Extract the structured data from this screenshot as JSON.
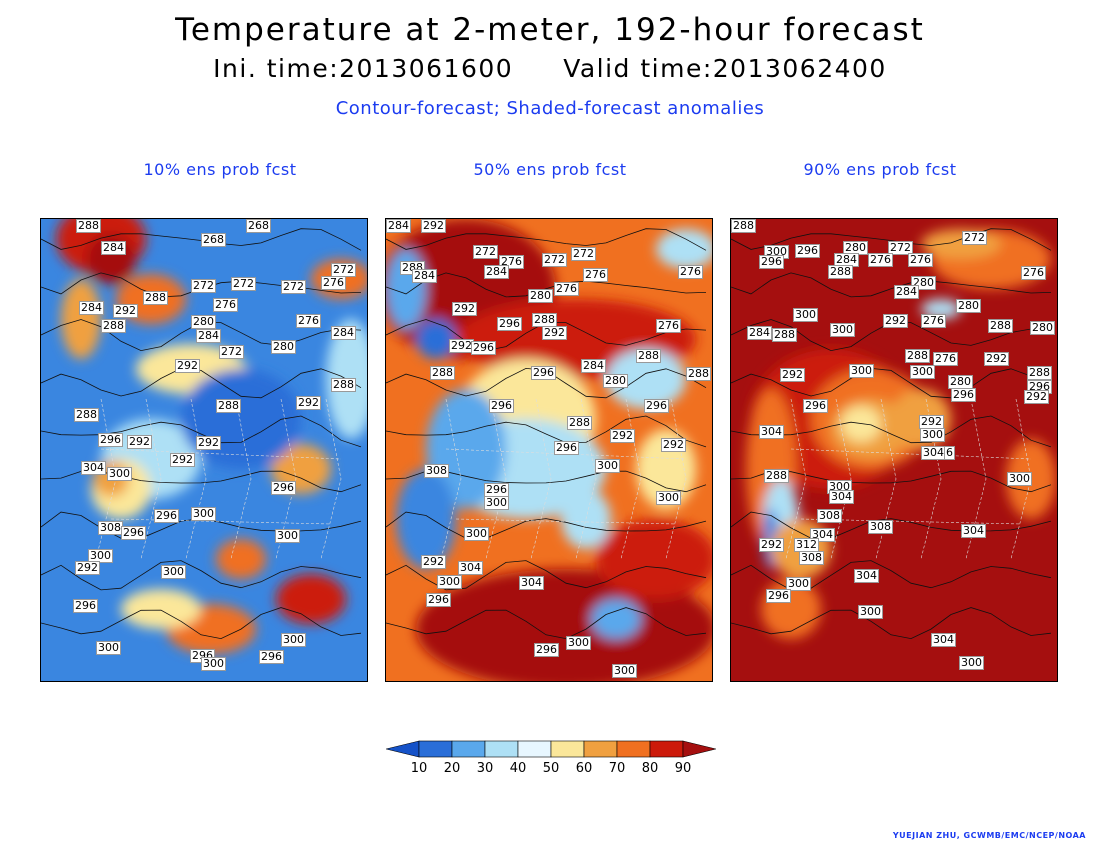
{
  "title": "Temperature at 2-meter, 192-hour forecast",
  "ini_time": "Ini. time:2013061600",
  "valid_time": "Valid time:2013062400",
  "subtitle": "Contour-forecast; Shaded-forecast anomalies",
  "panels": [
    {
      "title": "10% ens prob fcst",
      "base_color": "#3a86e0",
      "blobs": [
        {
          "c": "#cc1a0a",
          "x": 60,
          "y": 20,
          "rx": 45,
          "ry": 35
        },
        {
          "c": "#a50f0f",
          "x": 70,
          "y": 40,
          "rx": 25,
          "ry": 25
        },
        {
          "c": "#f07020",
          "x": 110,
          "y": 80,
          "rx": 35,
          "ry": 25
        },
        {
          "c": "#f0a040",
          "x": 40,
          "y": 100,
          "rx": 20,
          "ry": 40
        },
        {
          "c": "#fbe79a",
          "x": 150,
          "y": 150,
          "rx": 55,
          "ry": 25
        },
        {
          "c": "#aee0f5",
          "x": 110,
          "y": 240,
          "rx": 50,
          "ry": 40
        },
        {
          "c": "#fbe79a",
          "x": 80,
          "y": 270,
          "rx": 30,
          "ry": 30
        },
        {
          "c": "#f0a040",
          "x": 70,
          "y": 260,
          "rx": 18,
          "ry": 18
        },
        {
          "c": "#f07020",
          "x": 200,
          "y": 340,
          "rx": 25,
          "ry": 20
        },
        {
          "c": "#cc1a0a",
          "x": 270,
          "y": 380,
          "rx": 35,
          "ry": 25
        },
        {
          "c": "#f07020",
          "x": 170,
          "y": 410,
          "rx": 45,
          "ry": 25
        },
        {
          "c": "#fbe79a",
          "x": 120,
          "y": 390,
          "rx": 40,
          "ry": 20
        },
        {
          "c": "#f0a040",
          "x": 260,
          "y": 250,
          "rx": 30,
          "ry": 25
        },
        {
          "c": "#2a6ed8",
          "x": 200,
          "y": 200,
          "rx": 60,
          "ry": 50
        },
        {
          "c": "#f07020",
          "x": 300,
          "y": 60,
          "rx": 30,
          "ry": 20
        },
        {
          "c": "#aee0f5",
          "x": 310,
          "y": 160,
          "rx": 25,
          "ry": 60
        }
      ],
      "labels": [
        {
          "t": "288",
          "x": 35,
          "y": 0
        },
        {
          "t": "284",
          "x": 60,
          "y": 22
        },
        {
          "t": "268",
          "x": 160,
          "y": 14
        },
        {
          "t": "268",
          "x": 205,
          "y": 0
        },
        {
          "t": "272",
          "x": 290,
          "y": 44
        },
        {
          "t": "276",
          "x": 280,
          "y": 57
        },
        {
          "t": "272",
          "x": 150,
          "y": 60
        },
        {
          "t": "272",
          "x": 190,
          "y": 58
        },
        {
          "t": "272",
          "x": 240,
          "y": 61
        },
        {
          "t": "288",
          "x": 102,
          "y": 72
        },
        {
          "t": "276",
          "x": 172,
          "y": 79
        },
        {
          "t": "284",
          "x": 38,
          "y": 82
        },
        {
          "t": "292",
          "x": 72,
          "y": 85
        },
        {
          "t": "288",
          "x": 60,
          "y": 100
        },
        {
          "t": "276",
          "x": 255,
          "y": 95
        },
        {
          "t": "284",
          "x": 290,
          "y": 107
        },
        {
          "t": "280",
          "x": 150,
          "y": 96
        },
        {
          "t": "284",
          "x": 155,
          "y": 110
        },
        {
          "t": "272",
          "x": 178,
          "y": 126
        },
        {
          "t": "280",
          "x": 230,
          "y": 121
        },
        {
          "t": "292",
          "x": 134,
          "y": 140
        },
        {
          "t": "288",
          "x": 290,
          "y": 159
        },
        {
          "t": "288",
          "x": 175,
          "y": 180
        },
        {
          "t": "292",
          "x": 255,
          "y": 177
        },
        {
          "t": "288",
          "x": 33,
          "y": 189
        },
        {
          "t": "296",
          "x": 57,
          "y": 214
        },
        {
          "t": "292",
          "x": 86,
          "y": 216
        },
        {
          "t": "292",
          "x": 155,
          "y": 217
        },
        {
          "t": "292",
          "x": 129,
          "y": 234
        },
        {
          "t": "304",
          "x": 40,
          "y": 242
        },
        {
          "t": "300",
          "x": 66,
          "y": 248
        },
        {
          "t": "296",
          "x": 230,
          "y": 262
        },
        {
          "t": "296",
          "x": 113,
          "y": 290
        },
        {
          "t": "300",
          "x": 150,
          "y": 288
        },
        {
          "t": "308",
          "x": 57,
          "y": 302
        },
        {
          "t": "296",
          "x": 80,
          "y": 307
        },
        {
          "t": "300",
          "x": 234,
          "y": 310
        },
        {
          "t": "300",
          "x": 47,
          "y": 330
        },
        {
          "t": "292",
          "x": 34,
          "y": 342
        },
        {
          "t": "300",
          "x": 120,
          "y": 346
        },
        {
          "t": "296",
          "x": 32,
          "y": 380
        },
        {
          "t": "300",
          "x": 240,
          "y": 414
        },
        {
          "t": "300",
          "x": 55,
          "y": 422
        },
        {
          "t": "296",
          "x": 149,
          "y": 430
        },
        {
          "t": "300",
          "x": 160,
          "y": 438
        },
        {
          "t": "296",
          "x": 218,
          "y": 431
        }
      ]
    },
    {
      "title": "50% ens prob fcst",
      "base_color": "#f07020",
      "blobs": [
        {
          "c": "#a50f0f",
          "x": 80,
          "y": 70,
          "rx": 90,
          "ry": 70
        },
        {
          "c": "#cc1a0a",
          "x": 190,
          "y": 120,
          "rx": 120,
          "ry": 40
        },
        {
          "c": "#5aa8ec",
          "x": 20,
          "y": 70,
          "rx": 20,
          "ry": 40
        },
        {
          "c": "#fbe79a",
          "x": 140,
          "y": 200,
          "rx": 70,
          "ry": 60
        },
        {
          "c": "#aee0f5",
          "x": 140,
          "y": 250,
          "rx": 80,
          "ry": 50
        },
        {
          "c": "#5aa8ec",
          "x": 80,
          "y": 230,
          "rx": 40,
          "ry": 60
        },
        {
          "c": "#3a86e0",
          "x": 40,
          "y": 300,
          "rx": 30,
          "ry": 50
        },
        {
          "c": "#aee0f5",
          "x": 260,
          "y": 160,
          "rx": 40,
          "ry": 30
        },
        {
          "c": "#fbe79a",
          "x": 280,
          "y": 250,
          "rx": 30,
          "ry": 40
        },
        {
          "c": "#a50f0f",
          "x": 180,
          "y": 410,
          "rx": 150,
          "ry": 60
        },
        {
          "c": "#cc1a0a",
          "x": 270,
          "y": 340,
          "rx": 60,
          "ry": 40
        },
        {
          "c": "#5aa8ec",
          "x": 230,
          "y": 400,
          "rx": 25,
          "ry": 20
        },
        {
          "c": "#aee0f5",
          "x": 200,
          "y": 300,
          "rx": 25,
          "ry": 30
        },
        {
          "c": "#2a6ed8",
          "x": 50,
          "y": 120,
          "rx": 20,
          "ry": 20
        },
        {
          "c": "#aee0f5",
          "x": 300,
          "y": 30,
          "rx": 30,
          "ry": 20
        }
      ],
      "labels": [
        {
          "t": "284",
          "x": 0,
          "y": 0
        },
        {
          "t": "292",
          "x": 35,
          "y": 0
        },
        {
          "t": "272",
          "x": 87,
          "y": 26
        },
        {
          "t": "276",
          "x": 113,
          "y": 36
        },
        {
          "t": "272",
          "x": 156,
          "y": 34
        },
        {
          "t": "272",
          "x": 185,
          "y": 28
        },
        {
          "t": "276",
          "x": 292,
          "y": 46
        },
        {
          "t": "288",
          "x": 14,
          "y": 42
        },
        {
          "t": "284",
          "x": 26,
          "y": 50
        },
        {
          "t": "284",
          "x": 98,
          "y": 46
        },
        {
          "t": "276",
          "x": 197,
          "y": 49
        },
        {
          "t": "276",
          "x": 168,
          "y": 63
        },
        {
          "t": "280",
          "x": 142,
          "y": 70
        },
        {
          "t": "292",
          "x": 66,
          "y": 83
        },
        {
          "t": "296",
          "x": 111,
          "y": 98
        },
        {
          "t": "288",
          "x": 146,
          "y": 94
        },
        {
          "t": "292",
          "x": 156,
          "y": 107
        },
        {
          "t": "276",
          "x": 270,
          "y": 100
        },
        {
          "t": "292",
          "x": 63,
          "y": 120
        },
        {
          "t": "296",
          "x": 85,
          "y": 122
        },
        {
          "t": "288",
          "x": 250,
          "y": 130
        },
        {
          "t": "284",
          "x": 195,
          "y": 140
        },
        {
          "t": "288",
          "x": 44,
          "y": 147
        },
        {
          "t": "296",
          "x": 145,
          "y": 147
        },
        {
          "t": "280",
          "x": 217,
          "y": 155
        },
        {
          "t": "288",
          "x": 300,
          "y": 148
        },
        {
          "t": "296",
          "x": 103,
          "y": 180
        },
        {
          "t": "296",
          "x": 258,
          "y": 180
        },
        {
          "t": "288",
          "x": 181,
          "y": 197
        },
        {
          "t": "292",
          "x": 224,
          "y": 210
        },
        {
          "t": "296",
          "x": 168,
          "y": 222
        },
        {
          "t": "292",
          "x": 275,
          "y": 219
        },
        {
          "t": "308",
          "x": 38,
          "y": 245
        },
        {
          "t": "300",
          "x": 209,
          "y": 240
        },
        {
          "t": "296",
          "x": 98,
          "y": 264
        },
        {
          "t": "300",
          "x": 98,
          "y": 277
        },
        {
          "t": "300",
          "x": 270,
          "y": 272
        },
        {
          "t": "300",
          "x": 78,
          "y": 308
        },
        {
          "t": "292",
          "x": 35,
          "y": 336
        },
        {
          "t": "304",
          "x": 72,
          "y": 342
        },
        {
          "t": "300",
          "x": 51,
          "y": 356
        },
        {
          "t": "304",
          "x": 133,
          "y": 357
        },
        {
          "t": "296",
          "x": 40,
          "y": 374
        },
        {
          "t": "300",
          "x": 180,
          "y": 417
        },
        {
          "t": "296",
          "x": 148,
          "y": 424
        },
        {
          "t": "300",
          "x": 226,
          "y": 445
        }
      ]
    },
    {
      "title": "90% ens prob fcst",
      "base_color": "#a50f0f",
      "blobs": [
        {
          "c": "#cc1a0a",
          "x": 100,
          "y": 200,
          "rx": 80,
          "ry": 70
        },
        {
          "c": "#f07020",
          "x": 140,
          "y": 200,
          "rx": 60,
          "ry": 50
        },
        {
          "c": "#f0a040",
          "x": 140,
          "y": 210,
          "rx": 40,
          "ry": 30
        },
        {
          "c": "#fbe79a",
          "x": 130,
          "y": 205,
          "rx": 20,
          "ry": 18
        },
        {
          "c": "#f0a040",
          "x": 190,
          "y": 200,
          "rx": 30,
          "ry": 30
        },
        {
          "c": "#f07020",
          "x": 40,
          "y": 250,
          "rx": 25,
          "ry": 80
        },
        {
          "c": "#aee0f5",
          "x": 50,
          "y": 300,
          "rx": 18,
          "ry": 40
        },
        {
          "c": "#3a86e0",
          "x": 40,
          "y": 320,
          "rx": 8,
          "ry": 30
        },
        {
          "c": "#f0a040",
          "x": 70,
          "y": 330,
          "rx": 30,
          "ry": 30
        },
        {
          "c": "#f07020",
          "x": 260,
          "y": 40,
          "rx": 60,
          "ry": 30
        },
        {
          "c": "#f0a040",
          "x": 230,
          "y": 25,
          "rx": 40,
          "ry": 15
        },
        {
          "c": "#aee0f5",
          "x": 210,
          "y": 90,
          "rx": 20,
          "ry": 10
        },
        {
          "c": "#f07020",
          "x": 300,
          "y": 260,
          "rx": 25,
          "ry": 40
        },
        {
          "c": "#f07020",
          "x": 60,
          "y": 390,
          "rx": 30,
          "ry": 30
        }
      ],
      "labels": [
        {
          "t": "288",
          "x": 0,
          "y": 0
        },
        {
          "t": "300",
          "x": 33,
          "y": 26
        },
        {
          "t": "296",
          "x": 28,
          "y": 36
        },
        {
          "t": "296",
          "x": 64,
          "y": 25
        },
        {
          "t": "280",
          "x": 112,
          "y": 22
        },
        {
          "t": "272",
          "x": 157,
          "y": 22
        },
        {
          "t": "272",
          "x": 231,
          "y": 12
        },
        {
          "t": "284",
          "x": 103,
          "y": 34
        },
        {
          "t": "276",
          "x": 137,
          "y": 34
        },
        {
          "t": "276",
          "x": 177,
          "y": 34
        },
        {
          "t": "288",
          "x": 97,
          "y": 46
        },
        {
          "t": "276",
          "x": 290,
          "y": 47
        },
        {
          "t": "280",
          "x": 180,
          "y": 57
        },
        {
          "t": "284",
          "x": 163,
          "y": 66
        },
        {
          "t": "280",
          "x": 225,
          "y": 80
        },
        {
          "t": "300",
          "x": 62,
          "y": 89
        },
        {
          "t": "292",
          "x": 152,
          "y": 95
        },
        {
          "t": "276",
          "x": 190,
          "y": 95
        },
        {
          "t": "288",
          "x": 257,
          "y": 100
        },
        {
          "t": "280",
          "x": 299,
          "y": 102
        },
        {
          "t": "284",
          "x": 16,
          "y": 107
        },
        {
          "t": "288",
          "x": 41,
          "y": 109
        },
        {
          "t": "300",
          "x": 99,
          "y": 104
        },
        {
          "t": "288",
          "x": 174,
          "y": 130
        },
        {
          "t": "276",
          "x": 202,
          "y": 133
        },
        {
          "t": "292",
          "x": 253,
          "y": 133
        },
        {
          "t": "300",
          "x": 118,
          "y": 145
        },
        {
          "t": "300",
          "x": 179,
          "y": 146
        },
        {
          "t": "280",
          "x": 217,
          "y": 156
        },
        {
          "t": "296",
          "x": 220,
          "y": 169
        },
        {
          "t": "288",
          "x": 296,
          "y": 147
        },
        {
          "t": "296",
          "x": 296,
          "y": 161
        },
        {
          "t": "292",
          "x": 293,
          "y": 171
        },
        {
          "t": "292",
          "x": 49,
          "y": 149
        },
        {
          "t": "296",
          "x": 72,
          "y": 180
        },
        {
          "t": "292",
          "x": 188,
          "y": 196
        },
        {
          "t": "300",
          "x": 189,
          "y": 209
        },
        {
          "t": "304",
          "x": 28,
          "y": 206
        },
        {
          "t": "304",
          "x": 190,
          "y": 227
        },
        {
          "t": "6",
          "x": 213,
          "y": 227
        },
        {
          "t": "288",
          "x": 33,
          "y": 250
        },
        {
          "t": "300",
          "x": 276,
          "y": 253
        },
        {
          "t": "300",
          "x": 96,
          "y": 261
        },
        {
          "t": "304",
          "x": 98,
          "y": 271
        },
        {
          "t": "308",
          "x": 86,
          "y": 290
        },
        {
          "t": "308",
          "x": 137,
          "y": 301
        },
        {
          "t": "304",
          "x": 230,
          "y": 305
        },
        {
          "t": "304",
          "x": 79,
          "y": 309
        },
        {
          "t": "292",
          "x": 28,
          "y": 319
        },
        {
          "t": "312",
          "x": 63,
          "y": 319
        },
        {
          "t": "308",
          "x": 68,
          "y": 332
        },
        {
          "t": "304",
          "x": 123,
          "y": 350
        },
        {
          "t": "300",
          "x": 55,
          "y": 358
        },
        {
          "t": "296",
          "x": 35,
          "y": 370
        },
        {
          "t": "300",
          "x": 127,
          "y": 386
        },
        {
          "t": "304",
          "x": 200,
          "y": 414
        },
        {
          "t": "300",
          "x": 228,
          "y": 437
        }
      ]
    }
  ],
  "colorbar": {
    "colors": [
      "#1552c8",
      "#2a6ed8",
      "#5aa8ec",
      "#aee0f5",
      "#e8f7ff",
      "#fbe79a",
      "#f0a040",
      "#f07020",
      "#cc1a0a",
      "#a50f0f"
    ],
    "ticks": [
      "10",
      "20",
      "30",
      "40",
      "50",
      "60",
      "70",
      "80",
      "90"
    ]
  },
  "credit": "YUEJIAN ZHU, GCWMB/EMC/NCEP/NOAA"
}
